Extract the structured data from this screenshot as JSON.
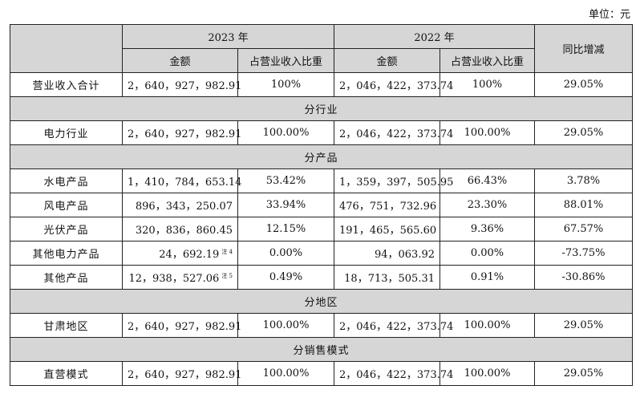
{
  "unit_label": "单位：元",
  "header": {
    "year1": "2023 年",
    "year2": "2022 年",
    "yoy": "同比增减",
    "amount": "金额",
    "share": "占营业收入比重"
  },
  "total_row": {
    "label": "营业收入合计",
    "amt2023": "2，640，927，982.91",
    "pct2023": "100%",
    "amt2022": "2，046，422，373.74",
    "pct2022": "100%",
    "yoy": "29.05%"
  },
  "sections": {
    "industry": "分行业",
    "product": "分产品",
    "region": "分地区",
    "sales": "分销售模式"
  },
  "industry_rows": [
    {
      "label": "电力行业",
      "amt2023": "2，640，927，982.91",
      "pct2023": "100.00%",
      "amt2022": "2，046，422，373.74",
      "pct2022": "100.00%",
      "yoy": "29.05%"
    }
  ],
  "product_rows": [
    {
      "label": "水电产品",
      "amt2023": "1，410，784，653.14",
      "note": "",
      "pct2023": "53.42%",
      "amt2022": "1，359，397，505.95",
      "pct2022": "66.43%",
      "yoy": "3.78%"
    },
    {
      "label": "风电产品",
      "amt2023": "896，343，250.07",
      "note": "",
      "pct2023": "33.94%",
      "amt2022": "476，751，732.96",
      "pct2022": "23.30%",
      "yoy": "88.01%"
    },
    {
      "label": "光伏产品",
      "amt2023": "320，836，860.45",
      "note": "",
      "pct2023": "12.15%",
      "amt2022": "191，465，565.60",
      "pct2022": "9.36%",
      "yoy": "67.57%"
    },
    {
      "label": "其他电力产品",
      "amt2023": "24，692.19",
      "note": "注 4",
      "pct2023": "0.00%",
      "amt2022": "94，063.92",
      "pct2022": "0.00%",
      "yoy": "-73.75%"
    },
    {
      "label": "其他产品",
      "amt2023": "12，938，527.06",
      "note": "注 5",
      "pct2023": "0.49%",
      "amt2022": "18，713，505.31",
      "pct2022": "0.91%",
      "yoy": "-30.86%"
    }
  ],
  "region_rows": [
    {
      "label": "甘肃地区",
      "amt2023": "2，640，927，982.91",
      "pct2023": "100.00%",
      "amt2022": "2，046，422，373.74",
      "pct2022": "100.00%",
      "yoy": "29.05%"
    }
  ],
  "sales_rows": [
    {
      "label": "直营模式",
      "amt2023": "2，640，927，982.91",
      "pct2023": "100.00%",
      "amt2022": "2，046，422，373.74",
      "pct2022": "100.00%",
      "yoy": "29.05%"
    }
  ]
}
